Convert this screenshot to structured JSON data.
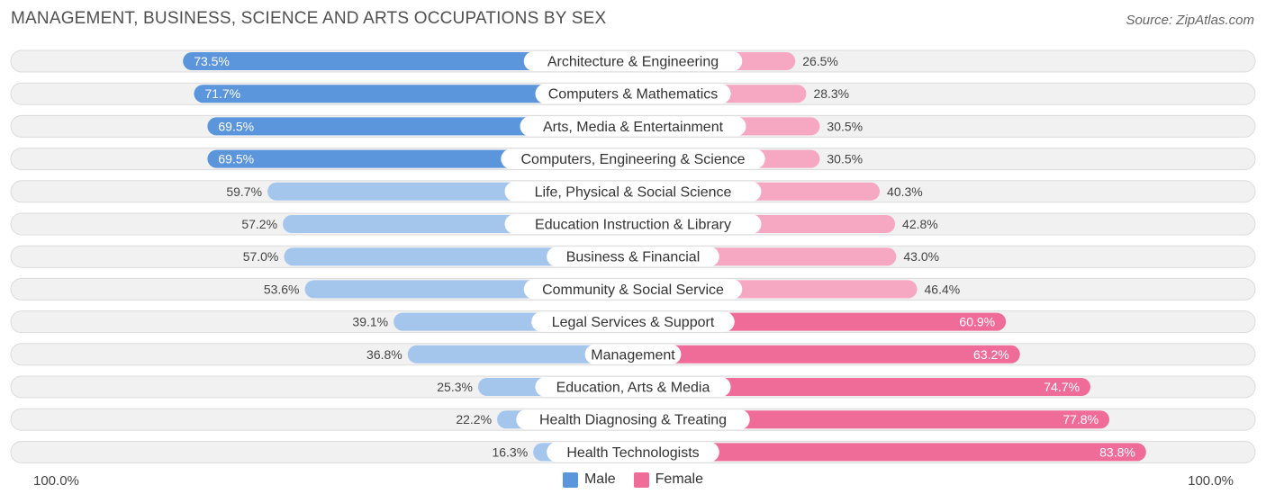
{
  "header": {
    "title": "MANAGEMENT, BUSINESS, SCIENCE AND ARTS OCCUPATIONS BY SEX",
    "source": "Source: ZipAtlas.com"
  },
  "axis": {
    "left_label": "100.0%",
    "right_label": "100.0%"
  },
  "legend": {
    "male_label": "Male",
    "female_label": "Female"
  },
  "colors": {
    "male_strong": "#5b95dc",
    "male_light": "#a5c6ec",
    "female_strong": "#f06c98",
    "female_light": "#f6a8c2",
    "row_bg": "#f1f1f1",
    "row_border": "#dcdcdc"
  },
  "chart_data": {
    "type": "bar",
    "orientation": "diverging-horizontal",
    "title": "MANAGEMENT, BUSINESS, SCIENCE AND ARTS OCCUPATIONS BY SEX",
    "xlim": [
      -100,
      100
    ],
    "categories": [
      "Architecture & Engineering",
      "Computers & Mathematics",
      "Arts, Media & Entertainment",
      "Computers, Engineering & Science",
      "Life, Physical & Social Science",
      "Education Instruction & Library",
      "Business & Financial",
      "Community & Social Service",
      "Legal Services & Support",
      "Management",
      "Education, Arts & Media",
      "Health Diagnosing & Treating",
      "Health Technologists"
    ],
    "series": [
      {
        "name": "Male",
        "values": [
          73.5,
          71.7,
          69.5,
          69.5,
          59.7,
          57.2,
          57.0,
          53.6,
          39.1,
          36.8,
          25.3,
          22.2,
          16.3
        ],
        "labels": [
          "73.5%",
          "71.7%",
          "69.5%",
          "69.5%",
          "59.7%",
          "57.2%",
          "57.0%",
          "53.6%",
          "39.1%",
          "36.8%",
          "25.3%",
          "22.2%",
          "16.3%"
        ]
      },
      {
        "name": "Female",
        "values": [
          26.5,
          28.3,
          30.5,
          30.5,
          40.3,
          42.8,
          43.0,
          46.4,
          60.9,
          63.2,
          74.7,
          77.8,
          83.8
        ],
        "labels": [
          "26.5%",
          "28.3%",
          "30.5%",
          "30.5%",
          "40.3%",
          "42.8%",
          "43.0%",
          "46.4%",
          "60.9%",
          "63.2%",
          "74.7%",
          "77.8%",
          "83.8%"
        ]
      }
    ]
  }
}
